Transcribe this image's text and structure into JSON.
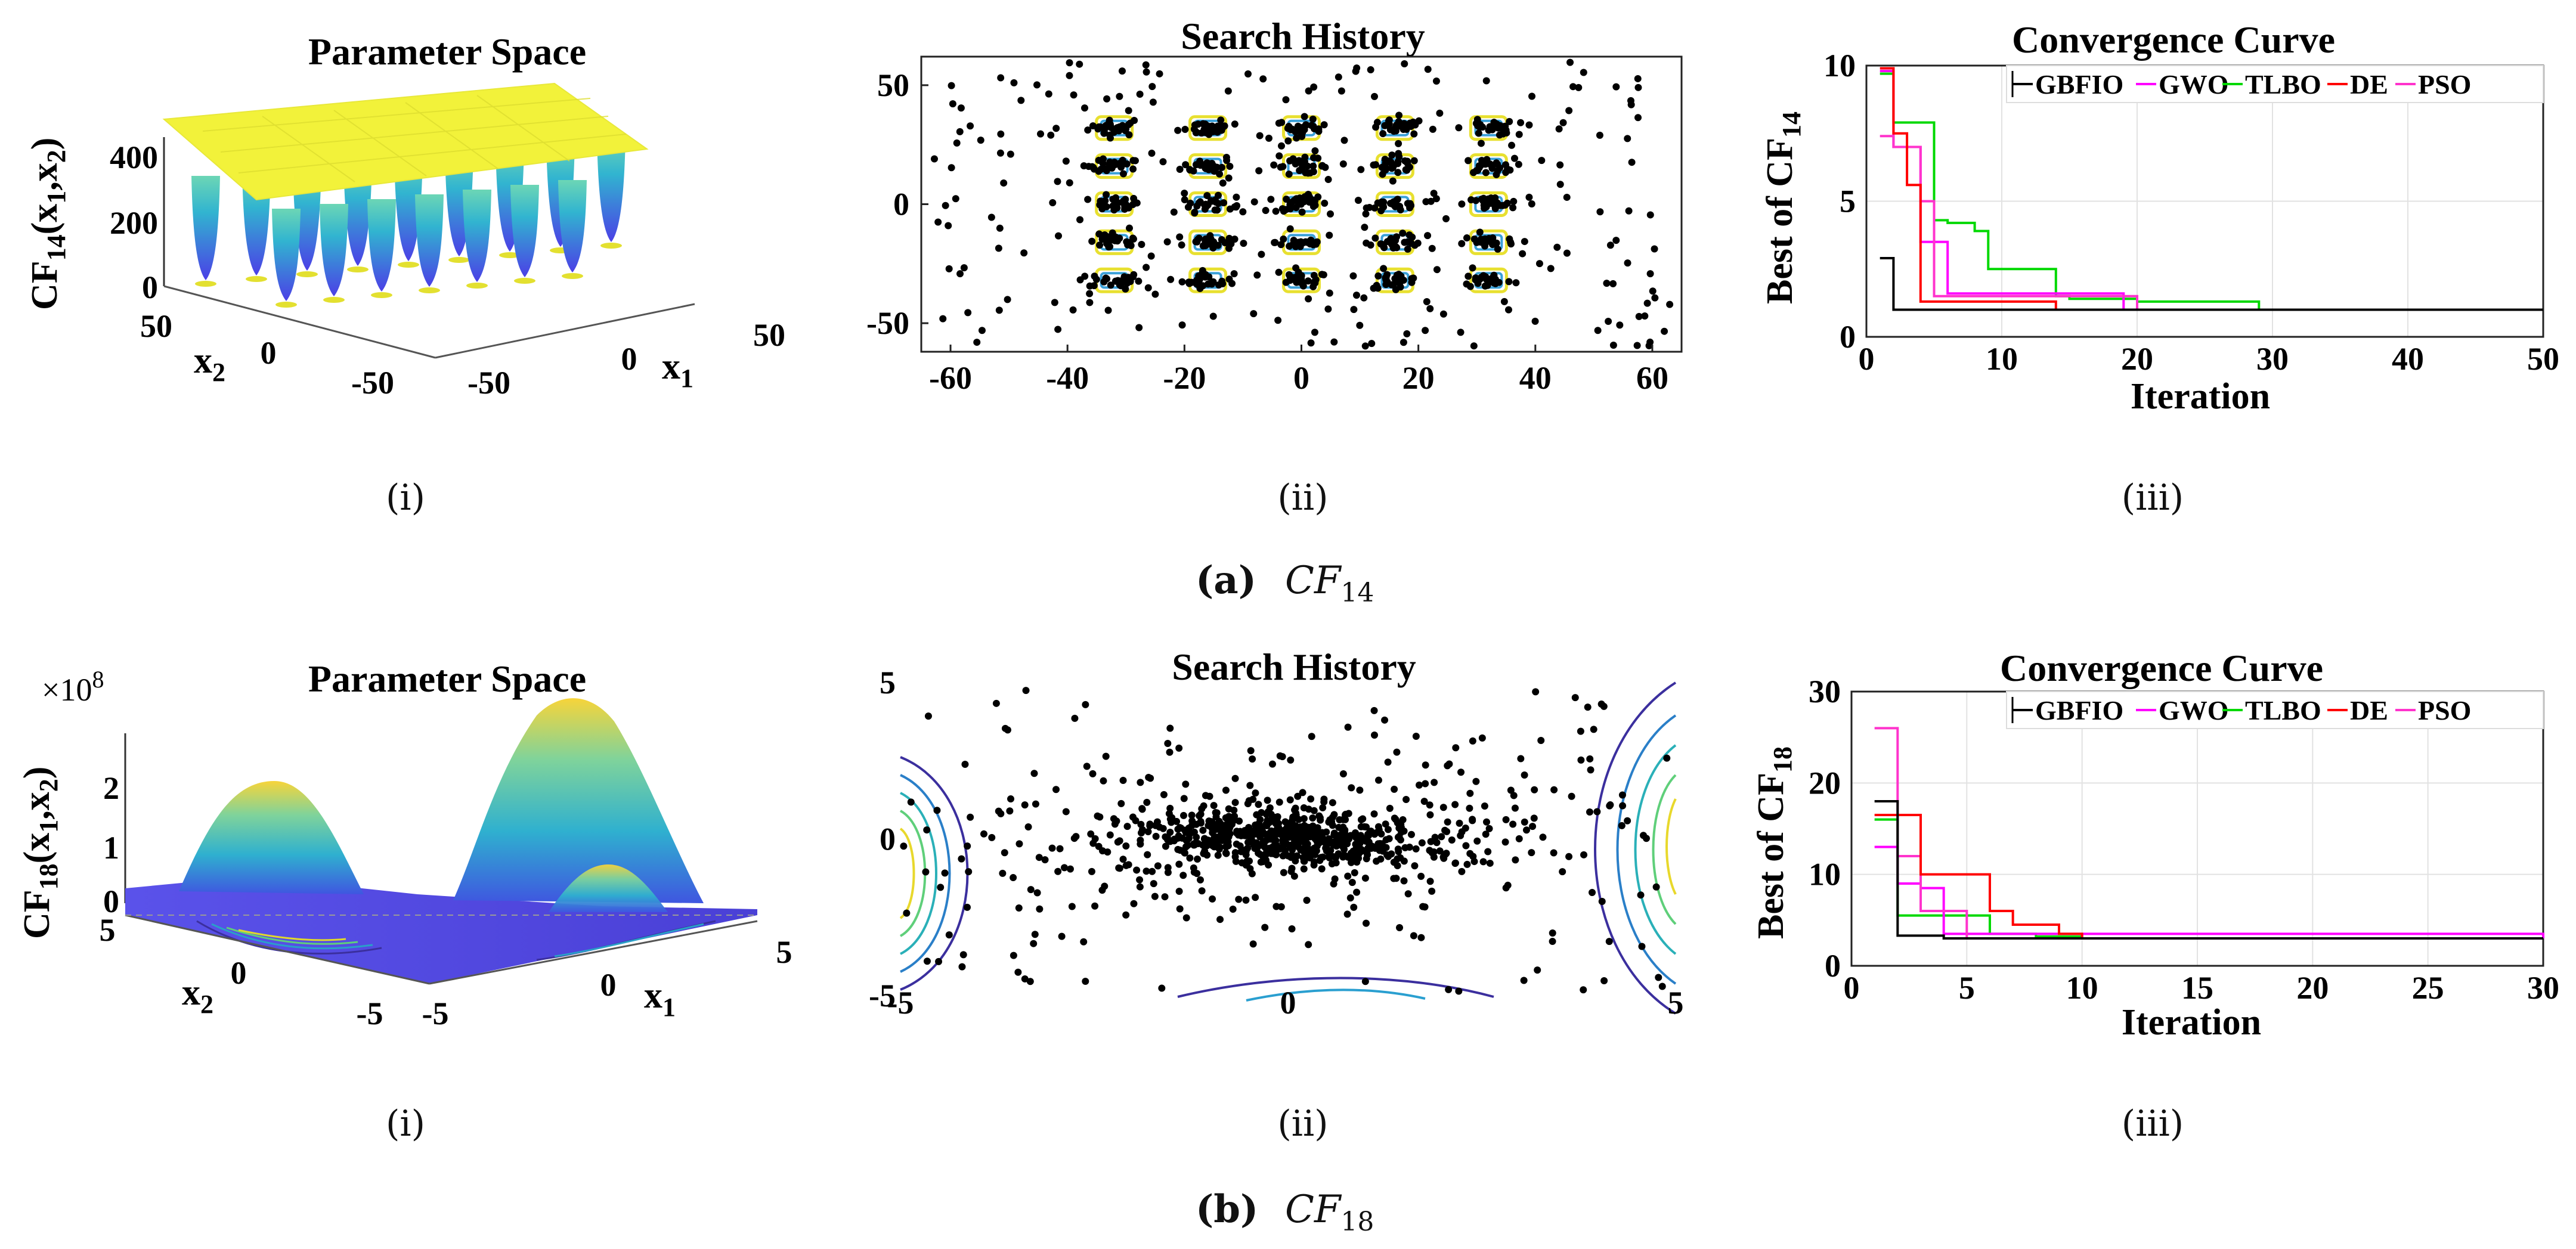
{
  "colors": {
    "gbfio": "#000000",
    "gwo": "#ff00ff",
    "tlbo": "#00d800",
    "de": "#ff0000",
    "pso": "#ff33cc",
    "surface_top": "#f5f53a",
    "surface_mid": "#35b7c8",
    "surface_low": "#4b49e3"
  },
  "row_a": {
    "caption_letter": "(a)",
    "caption_func": "CF",
    "caption_sub": "14",
    "panel_i": {
      "label": "(i)",
      "title": "Parameter Space",
      "zlabel_main": "CF",
      "zlabel_sub": "14",
      "zlabel_rest": "(x",
      "zlabel_s1": "1",
      "zlabel_comma": ",x",
      "zlabel_s2": "2",
      "zlabel_close": ")",
      "z_ticks": [
        "400",
        "200",
        "0"
      ],
      "x2_ticks": [
        "50",
        "0",
        "-50"
      ],
      "x1_ticks": [
        "-50",
        "0",
        "50"
      ],
      "x1_label": "x",
      "x1_sub": "1",
      "x2_label": "x",
      "x2_sub": "2"
    },
    "panel_ii": {
      "label": "(ii)",
      "title": "Search History",
      "x_ticks": [
        "-60",
        "-40",
        "-20",
        "0",
        "20",
        "40",
        "60"
      ],
      "y_ticks": [
        "50",
        "0",
        "-50"
      ]
    },
    "panel_iii": {
      "label": "(iii)",
      "title": "Convergence Curve",
      "legend": [
        "GBFIO",
        "GWO",
        "TLBO",
        "DE",
        "PSO"
      ],
      "xlabel": "Iteration",
      "ylabel_main": "Best of CF",
      "ylabel_sub": "14",
      "x_ticks": [
        "0",
        "10",
        "20",
        "30",
        "40",
        "50"
      ],
      "y_ticks": [
        "10",
        "5",
        "0"
      ]
    }
  },
  "row_b": {
    "caption_letter": "(b)",
    "caption_func": "CF",
    "caption_sub": "18",
    "panel_i": {
      "label": "(i)",
      "title": "Parameter Space",
      "scale_base": "×10",
      "scale_exp": "8",
      "zlabel_main": "CF",
      "zlabel_sub": "18",
      "zlabel_rest": "(x",
      "zlabel_s1": "1",
      "zlabel_comma": ",x",
      "zlabel_s2": "2",
      "zlabel_close": ")",
      "z_ticks": [
        "2",
        "1",
        "0"
      ],
      "x2_ticks": [
        "5",
        "0",
        "-5"
      ],
      "x1_ticks": [
        "-5",
        "0",
        "5"
      ],
      "x1_label": "x",
      "x1_sub": "1",
      "x2_label": "x",
      "x2_sub": "2"
    },
    "panel_ii": {
      "label": "(ii)",
      "title": "Search History",
      "x_ticks": [
        "-5",
        "0",
        "5"
      ],
      "y_ticks": [
        "5",
        "0",
        "-5"
      ]
    },
    "panel_iii": {
      "label": "(iii)",
      "title": "Convergence Curve",
      "legend": [
        "GBFIO",
        "GWO",
        "TLBO",
        "DE",
        "PSO"
      ],
      "xlabel": "Iteration",
      "ylabel_main": "Best of CF",
      "ylabel_sub": "18",
      "x_ticks": [
        "0",
        "5",
        "10",
        "15",
        "20",
        "25",
        "30"
      ],
      "y_ticks": [
        "30",
        "20",
        "10",
        "0"
      ]
    }
  },
  "chart_data": [
    {
      "type": "line",
      "title": "Convergence Curve",
      "panel": "(a)(iii)",
      "xlabel": "Iteration",
      "ylabel": "Best of CF14",
      "xlim": [
        0,
        50
      ],
      "ylim": [
        0,
        10
      ],
      "series": [
        {
          "name": "GBFIO",
          "x": [
            1,
            2,
            5,
            50
          ],
          "values": [
            2.9,
            1.0,
            1.0,
            1.0
          ]
        },
        {
          "name": "GWO",
          "x": [
            1,
            2,
            4,
            6,
            18,
            19,
            50
          ],
          "values": [
            9.8,
            7.0,
            3.5,
            1.6,
            1.6,
            1.0,
            1.0
          ]
        },
        {
          "name": "TLBO",
          "x": [
            1,
            2,
            4,
            5,
            6,
            8,
            9,
            11,
            12,
            14,
            15,
            20,
            28,
            29,
            50
          ],
          "values": [
            9.7,
            7.9,
            7.9,
            4.3,
            4.2,
            3.9,
            2.5,
            2.5,
            2.5,
            1.5,
            1.4,
            1.3,
            1.3,
            1.0,
            1.0
          ]
        },
        {
          "name": "DE",
          "x": [
            1,
            2,
            3,
            4,
            13,
            14,
            50
          ],
          "values": [
            9.9,
            7.5,
            5.6,
            1.3,
            1.3,
            1.0,
            1.0
          ]
        },
        {
          "name": "PSO",
          "x": [
            1,
            2,
            4,
            5,
            19,
            20,
            50
          ],
          "values": [
            7.4,
            7.0,
            5.0,
            1.5,
            1.5,
            1.0,
            1.0
          ]
        }
      ]
    },
    {
      "type": "line",
      "title": "Convergence Curve",
      "panel": "(b)(iii)",
      "xlabel": "Iteration",
      "ylabel": "Best of CF18",
      "xlim": [
        0,
        30
      ],
      "ylim": [
        0,
        30
      ],
      "series": [
        {
          "name": "GBFIO",
          "x": [
            1,
            2,
            4,
            30
          ],
          "values": [
            18.0,
            3.3,
            3.0,
            3.0
          ]
        },
        {
          "name": "GWO",
          "x": [
            1,
            2,
            3,
            4,
            30
          ],
          "values": [
            13.0,
            9.0,
            8.5,
            3.5,
            3.0
          ]
        },
        {
          "name": "TLBO",
          "x": [
            1,
            2,
            4,
            6,
            8,
            10,
            30
          ],
          "values": [
            16.0,
            5.5,
            5.5,
            3.5,
            3.2,
            3.0,
            3.0
          ]
        },
        {
          "name": "DE",
          "x": [
            1,
            2,
            3,
            4,
            6,
            7,
            8,
            9,
            10,
            30
          ],
          "values": [
            16.5,
            16.5,
            10.0,
            10.0,
            6.0,
            4.5,
            4.5,
            3.5,
            3.0,
            3.0
          ]
        },
        {
          "name": "PSO",
          "x": [
            1,
            2,
            3,
            5,
            30
          ],
          "values": [
            26.0,
            12.0,
            6.0,
            3.0,
            3.0
          ]
        }
      ]
    },
    {
      "type": "scatter",
      "title": "Search History",
      "panel": "(a)(ii)",
      "xlim": [
        -65,
        65
      ],
      "ylim": [
        -62,
        62
      ],
      "description_cluster_centers_x": [
        -32,
        -16,
        0,
        16,
        32
      ],
      "description_cluster_centers_y": [
        32,
        16,
        0,
        -16,
        -32
      ]
    },
    {
      "type": "scatter",
      "title": "Search History",
      "panel": "(b)(ii)",
      "xlim": [
        -5,
        5
      ],
      "ylim": [
        -5,
        5
      ]
    }
  ]
}
